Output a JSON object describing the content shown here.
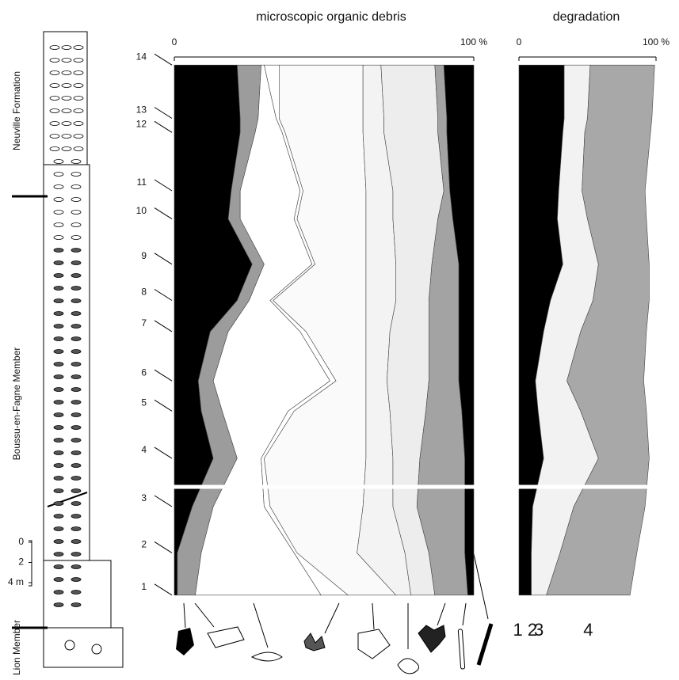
{
  "chart_data": [
    {
      "type": "stacked-area-horizontal",
      "title": "microscopic organic debris",
      "categories": [
        "1",
        "2",
        "3",
        "4",
        "5",
        "6",
        "7",
        "8",
        "9",
        "10",
        "11",
        "12",
        "13",
        "14"
      ],
      "positions": [
        0,
        4.2,
        8.8,
        13.6,
        18.3,
        21.3,
        26.2,
        29.3,
        32.9,
        37.4,
        40.2,
        46.0,
        47.4,
        52.7
      ],
      "ylim": [
        -0.8,
        53.5
      ],
      "xlim": [
        0,
        100
      ],
      "xticks": [
        0,
        {
          "value": 100,
          "label": "100 %"
        }
      ],
      "series": [
        {
          "color": "#000000",
          "values": [
            1,
            1,
            6,
            13,
            9,
            8,
            12,
            21,
            26,
            18,
            19,
            22,
            22,
            21
          ]
        },
        {
          "color": "#9c9c9c",
          "values": [
            6,
            8,
            7,
            8,
            7,
            5,
            6,
            4,
            4,
            4,
            3,
            5,
            6,
            8
          ]
        },
        {
          "color": "#ffffff",
          "values": [
            42,
            31,
            17,
            8,
            22,
            39,
            24,
            7,
            16,
            18,
            20,
            9,
            6,
            1
          ]
        },
        {
          "color": "#ffffff",
          "values": [
            9,
            1,
            2,
            1,
            2,
            2,
            2,
            1,
            1,
            1,
            1,
            1,
            1,
            5
          ]
        },
        {
          "color": "#fafafa",
          "values": [
            16,
            20,
            31,
            34,
            24,
            10,
            20,
            31,
            17,
            23,
            21,
            26,
            28,
            28
          ]
        },
        {
          "color": "#f3f3f3",
          "values": [
            5,
            16,
            10,
            9,
            8,
            7,
            8,
            10,
            10,
            9,
            9,
            7,
            7,
            6
          ]
        },
        {
          "color": "#ededed",
          "values": [
            8,
            8,
            8,
            9,
            12,
            14,
            13,
            11,
            12,
            15,
            17,
            18,
            18,
            18
          ]
        },
        {
          "color": "#a3a3a3",
          "values": [
            11,
            12,
            16,
            15,
            12,
            10,
            10,
            10,
            9,
            5,
            2,
            3,
            3,
            3
          ]
        },
        {
          "color": "#000000",
          "values": [
            2,
            3,
            3,
            3,
            4,
            5,
            5,
            5,
            5,
            7,
            8,
            9,
            9,
            10
          ]
        }
      ]
    },
    {
      "type": "stacked-area-horizontal",
      "title": "degradation",
      "ylim": [
        -0.8,
        53.5
      ],
      "xlim": [
        0,
        100
      ],
      "xticks": [
        0,
        {
          "value": 100,
          "label": "100 %"
        }
      ],
      "series": [
        {
          "name": "1 2",
          "color": "#000000",
          "values": [
            9,
            9,
            10,
            18,
            14,
            12,
            18,
            23,
            32,
            28,
            29,
            32,
            33,
            33
          ]
        },
        {
          "name": "3",
          "color": "#f2f2f2",
          "values": [
            11,
            21,
            30,
            40,
            31,
            23,
            27,
            31,
            26,
            22,
            17,
            16,
            17,
            19
          ]
        },
        {
          "name": "4",
          "color": "#a8a8a8",
          "values": [
            61,
            56,
            52,
            37,
            48,
            56,
            48,
            41,
            37,
            43,
            46,
            48,
            47,
            47
          ]
        }
      ]
    }
  ],
  "stratigraphic_column": {
    "units": [
      "Neuville Formation",
      "Boussu-en-Fagne Member",
      "Lion Member"
    ],
    "scale": [
      0,
      2,
      {
        "value": 4,
        "label": "4 m"
      }
    ]
  }
}
